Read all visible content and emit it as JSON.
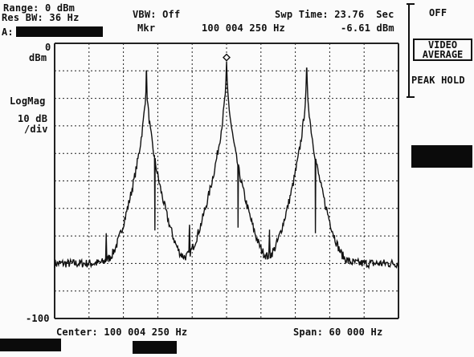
{
  "header": {
    "range": "Range: 0 dBm",
    "res_bw": "Res BW: 36 Hz",
    "trace_label": "A:",
    "vbw": "VBW: Off",
    "mkr_label": "Mkr",
    "mkr_freq": "100 004 250 Hz",
    "swp_time": "Swp Time: 23.76  Sec",
    "mkr_level": "-6.61 dBm"
  },
  "left_axis": {
    "top_value": "0",
    "top_unit": "dBm",
    "scale_mode": "LogMag",
    "scale_div_line1": "10 dB",
    "scale_div_line2": "/div",
    "bottom_value": "-100"
  },
  "footer": {
    "center": "Center: 100 004 250 Hz",
    "span": "Span: 60 000 Hz"
  },
  "softkeys": {
    "off": "OFF",
    "video_average_line1": "VIDEO",
    "video_average_line2": "AVERAGE",
    "peak_hold": "PEAK HOLD"
  },
  "colors": {
    "trace": "#111111",
    "grid": "#222222",
    "background": "#fbfbfb"
  },
  "chart_data": {
    "type": "line",
    "x_unit": "Hz",
    "center_hz": 100004250,
    "span_hz": 60000,
    "ylim": [
      -100,
      0
    ],
    "grid": true,
    "grid_divisions": {
      "x": 10,
      "y": 10
    },
    "marker": {
      "x_hz": 100004250,
      "y_dbm": -6.61
    },
    "peaks": [
      {
        "x_hz": 99990250,
        "y_dbm": -10
      },
      {
        "x_hz": 100004250,
        "y_dbm": -6.61
      },
      {
        "x_hz": 100018250,
        "y_dbm": -9
      }
    ],
    "spurs": [
      {
        "x_hz": 99983250,
        "y_dbm": -69
      },
      {
        "x_hz": 99991750,
        "y_dbm": -68
      },
      {
        "x_hz": 99997750,
        "y_dbm": -68
      },
      {
        "x_hz": 100006250,
        "y_dbm": -67
      },
      {
        "x_hz": 100011750,
        "y_dbm": -69
      },
      {
        "x_hz": 100019750,
        "y_dbm": -69
      }
    ],
    "noise_floor_dbm": -80
  }
}
